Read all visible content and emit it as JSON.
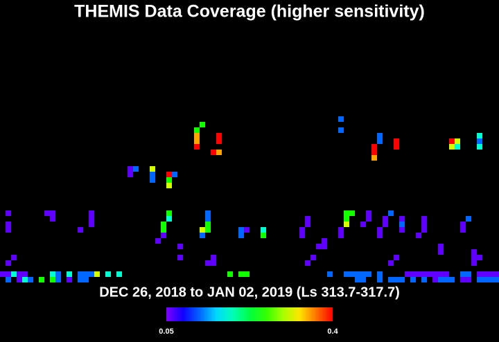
{
  "chart_data": {
    "type": "heatmap",
    "title": "THEMIS Data Coverage (higher sensitivity)",
    "subtitle": "DEC 26, 2018 to JAN 02, 2019 (Ls 313.7-317.7)",
    "clim": [
      0.05,
      0.4
    ],
    "cticks": [
      0.05,
      0.4
    ],
    "cells": [
      [
        61,
        21,
        0.12
      ],
      [
        61,
        23,
        0.12
      ],
      [
        68,
        24,
        0.12
      ],
      [
        68,
        25,
        0.12
      ],
      [
        67,
        26,
        0.4
      ],
      [
        67,
        27,
        0.4
      ],
      [
        67,
        28,
        0.35
      ],
      [
        71,
        25,
        0.4
      ],
      [
        71,
        26,
        0.4
      ],
      [
        81,
        25,
        0.4
      ],
      [
        82,
        25,
        0.31
      ],
      [
        81,
        26,
        0.31
      ],
      [
        82,
        26,
        0.18
      ],
      [
        86,
        24,
        0.18
      ],
      [
        86,
        25,
        0.12
      ],
      [
        86,
        26,
        0.18
      ],
      [
        36,
        22,
        0.25
      ],
      [
        35,
        23,
        0.25
      ],
      [
        35,
        24,
        0.35
      ],
      [
        35,
        25,
        0.35
      ],
      [
        35,
        26,
        0.4
      ],
      [
        39,
        24,
        0.4
      ],
      [
        39,
        25,
        0.4
      ],
      [
        38,
        27,
        0.4
      ],
      [
        39,
        27,
        0.35
      ],
      [
        23,
        30,
        0.06
      ],
      [
        24,
        30,
        0.12
      ],
      [
        23,
        31,
        0.06
      ],
      [
        27,
        30,
        0.31
      ],
      [
        27,
        31,
        0.12
      ],
      [
        27,
        32,
        0.12
      ],
      [
        30,
        31,
        0.4
      ],
      [
        31,
        31,
        0.12
      ],
      [
        30,
        32,
        0.25
      ],
      [
        30,
        33,
        0.31
      ],
      [
        1,
        38,
        0.06
      ],
      [
        1,
        40,
        0.06
      ],
      [
        1,
        41,
        0.06
      ],
      [
        8,
        38,
        0.06
      ],
      [
        9,
        38,
        0.06
      ],
      [
        9,
        39,
        0.06
      ],
      [
        16,
        38,
        0.06
      ],
      [
        16,
        39,
        0.06
      ],
      [
        16,
        40,
        0.06
      ],
      [
        14,
        41,
        0.06
      ],
      [
        30,
        38,
        0.25
      ],
      [
        30,
        39,
        0.18
      ],
      [
        29,
        40,
        0.25
      ],
      [
        29,
        41,
        0.25
      ],
      [
        29,
        42,
        0.06
      ],
      [
        28,
        43,
        0.06
      ],
      [
        32,
        44,
        0.06
      ],
      [
        32,
        46,
        0.06
      ],
      [
        37,
        38,
        0.12
      ],
      [
        37,
        39,
        0.12
      ],
      [
        37,
        40,
        0.25
      ],
      [
        36,
        41,
        0.31
      ],
      [
        37,
        41,
        0.25
      ],
      [
        36,
        42,
        0.12
      ],
      [
        43,
        41,
        0.12
      ],
      [
        44,
        41,
        0.06
      ],
      [
        43,
        42,
        0.12
      ],
      [
        47,
        41,
        0.18
      ],
      [
        47,
        42,
        0.25
      ],
      [
        38,
        46,
        0.06
      ],
      [
        37,
        47,
        0.06
      ],
      [
        38,
        47,
        0.06
      ],
      [
        55,
        39,
        0.06
      ],
      [
        55,
        40,
        0.06
      ],
      [
        54,
        41,
        0.06
      ],
      [
        54,
        42,
        0.06
      ],
      [
        58,
        43,
        0.06
      ],
      [
        58,
        44,
        0.06
      ],
      [
        57,
        44,
        0.06
      ],
      [
        56,
        46,
        0.06
      ],
      [
        55,
        47,
        0.06
      ],
      [
        62,
        38,
        0.25
      ],
      [
        63,
        38,
        0.25
      ],
      [
        62,
        39,
        0.25
      ],
      [
        62,
        40,
        0.31
      ],
      [
        61,
        41,
        0.06
      ],
      [
        61,
        42,
        0.06
      ],
      [
        66,
        38,
        0.06
      ],
      [
        66,
        39,
        0.06
      ],
      [
        65,
        40,
        0.06
      ],
      [
        70,
        38,
        0.12
      ],
      [
        69,
        39,
        0.06
      ],
      [
        69,
        40,
        0.06
      ],
      [
        68,
        41,
        0.06
      ],
      [
        68,
        42,
        0.06
      ],
      [
        72,
        39,
        0.06
      ],
      [
        72,
        40,
        0.12
      ],
      [
        72,
        41,
        0.06
      ],
      [
        76,
        39,
        0.06
      ],
      [
        76,
        40,
        0.06
      ],
      [
        76,
        41,
        0.06
      ],
      [
        75,
        42,
        0.06
      ],
      [
        84,
        39,
        0.12
      ],
      [
        83,
        40,
        0.06
      ],
      [
        83,
        41,
        0.06
      ],
      [
        79,
        44,
        0.06
      ],
      [
        79,
        45,
        0.06
      ],
      [
        85,
        45,
        0.06
      ],
      [
        85,
        46,
        0.06
      ],
      [
        86,
        46,
        0.06
      ],
      [
        85,
        47,
        0.06
      ],
      [
        2,
        46,
        0.06
      ],
      [
        1,
        47,
        0.06
      ],
      [
        71,
        46,
        0.06
      ],
      [
        70,
        47,
        0.06
      ],
      [
        0,
        49,
        0.06
      ],
      [
        1,
        49,
        0.06
      ],
      [
        2,
        49,
        0.18
      ],
      [
        3,
        49,
        0.06
      ],
      [
        4,
        49,
        0.06
      ],
      [
        9,
        49,
        0.18
      ],
      [
        10,
        49,
        0.12
      ],
      [
        12,
        49,
        0.18
      ],
      [
        14,
        49,
        0.12
      ],
      [
        15,
        49,
        0.12
      ],
      [
        16,
        49,
        0.12
      ],
      [
        17,
        49,
        0.31
      ],
      [
        19,
        49,
        0.18
      ],
      [
        21,
        49,
        0.18
      ],
      [
        41,
        49,
        0.25
      ],
      [
        43,
        49,
        0.25
      ],
      [
        44,
        49,
        0.25
      ],
      [
        59,
        49,
        0.12
      ],
      [
        62,
        49,
        0.12
      ],
      [
        63,
        49,
        0.12
      ],
      [
        64,
        49,
        0.12
      ],
      [
        65,
        49,
        0.12
      ],
      [
        66,
        49,
        0.12
      ],
      [
        68,
        49,
        0.12
      ],
      [
        73,
        49,
        0.06
      ],
      [
        74,
        49,
        0.06
      ],
      [
        75,
        49,
        0.06
      ],
      [
        76,
        49,
        0.06
      ],
      [
        77,
        49,
        0.06
      ],
      [
        78,
        49,
        0.06
      ],
      [
        79,
        49,
        0.06
      ],
      [
        80,
        49,
        0.06
      ],
      [
        83,
        49,
        0.12
      ],
      [
        84,
        49,
        0.12
      ],
      [
        86,
        49,
        0.06
      ],
      [
        87,
        49,
        0.06
      ],
      [
        88,
        49,
        0.06
      ],
      [
        89,
        49,
        0.06
      ],
      [
        1,
        50,
        0.12
      ],
      [
        3,
        50,
        0.06
      ],
      [
        4,
        50,
        0.18
      ],
      [
        5,
        50,
        0.12
      ],
      [
        7,
        50,
        0.25
      ],
      [
        9,
        50,
        0.25
      ],
      [
        10,
        50,
        0.12
      ],
      [
        12,
        50,
        0.06
      ],
      [
        14,
        50,
        0.12
      ],
      [
        15,
        50,
        0.12
      ],
      [
        64,
        50,
        0.12
      ],
      [
        65,
        50,
        0.12
      ],
      [
        68,
        50,
        0.12
      ],
      [
        70,
        50,
        0.12
      ],
      [
        71,
        50,
        0.12
      ],
      [
        72,
        50,
        0.12
      ],
      [
        74,
        50,
        0.12
      ],
      [
        76,
        50,
        0.12
      ],
      [
        78,
        50,
        0.06
      ],
      [
        79,
        50,
        0.12
      ],
      [
        80,
        50,
        0.12
      ],
      [
        81,
        50,
        0.12
      ],
      [
        83,
        50,
        0.06
      ],
      [
        84,
        50,
        0.06
      ],
      [
        86,
        50,
        0.12
      ],
      [
        87,
        50,
        0.12
      ],
      [
        88,
        50,
        0.12
      ],
      [
        89,
        50,
        0.12
      ]
    ]
  }
}
